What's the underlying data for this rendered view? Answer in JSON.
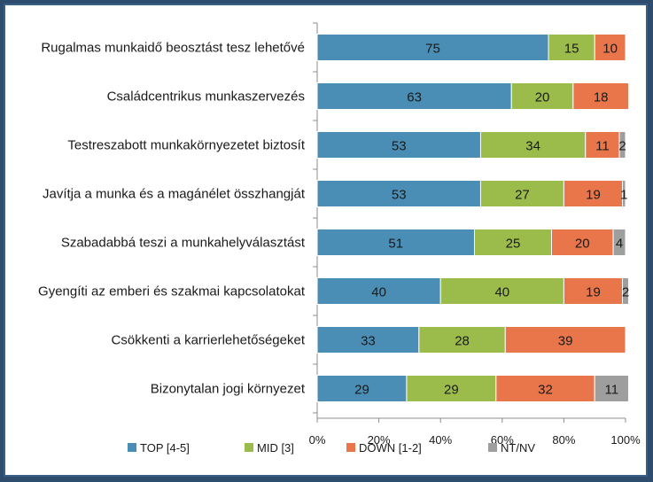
{
  "chart_data": {
    "type": "bar",
    "orientation": "horizontal",
    "stacked": true,
    "categories": [
      "Rugalmas munkaidő beosztást tesz lehetővé",
      "Családcentrikus munkaszervezés",
      "Testreszabott munkakörnyezetet biztosít",
      "Javítja a munka és a magánélet összhangját",
      "Szabadabbá teszi a munkahelyválasztást",
      "Gyengíti az emberi és szakmai kapcsolatokat",
      "Csökkenti a karrierlehetőségeket",
      "Bizonytalan jogi környezet"
    ],
    "series": [
      {
        "name": "TOP [4-5]",
        "color": "#4a8db5",
        "values": [
          75,
          63,
          53,
          53,
          51,
          40,
          33,
          29
        ]
      },
      {
        "name": "MID [3]",
        "color": "#9bbb4a",
        "values": [
          15,
          20,
          34,
          27,
          25,
          40,
          28,
          29
        ]
      },
      {
        "name": "DOWN [1-2]",
        "color": "#e8764a",
        "values": [
          10,
          18,
          11,
          19,
          20,
          19,
          39,
          32
        ]
      },
      {
        "name": "NT/NV",
        "color": "#9e9e9e",
        "values": [
          0,
          0,
          2,
          1,
          4,
          2,
          0,
          11
        ]
      }
    ],
    "xlim": [
      0,
      100
    ],
    "xticks": [
      "0%",
      "20%",
      "40%",
      "60%",
      "80%",
      "100%"
    ],
    "legend_position": "bottom",
    "grid": true
  }
}
